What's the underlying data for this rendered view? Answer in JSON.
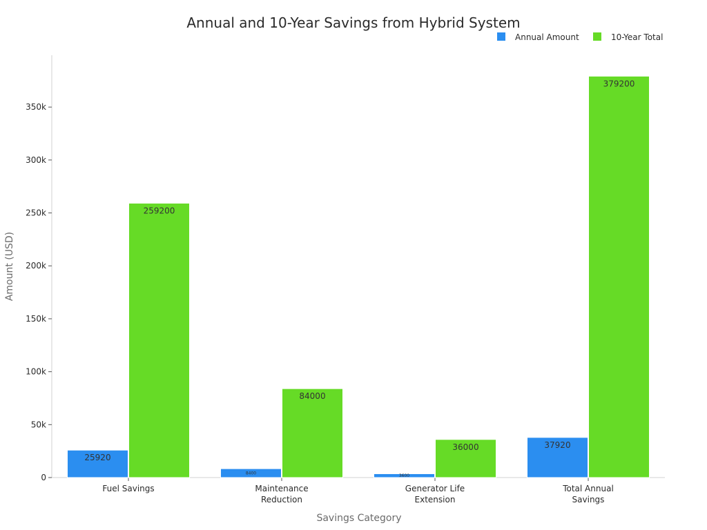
{
  "chart_data": {
    "type": "bar",
    "title": "Annual and 10-Year Savings from Hybrid System",
    "xlabel": "Savings Category",
    "ylabel": "Amount (USD)",
    "categories": [
      [
        "Fuel Savings"
      ],
      [
        "Maintenance",
        "Reduction"
      ],
      [
        "Generator Life",
        "Extension"
      ],
      [
        "Total Annual",
        "Savings"
      ]
    ],
    "series": [
      {
        "name": "Annual Amount",
        "color": "#2b8ef0",
        "values": [
          25920,
          8400,
          3600,
          37920
        ]
      },
      {
        "name": "10-Year Total",
        "color": "#66db26",
        "values": [
          259200,
          84000,
          36000,
          379200
        ]
      }
    ],
    "value_labels": [
      [
        "25920",
        "8400",
        "3600",
        "37920"
      ],
      [
        "259200",
        "84000",
        "36000",
        "379200"
      ]
    ],
    "yticks": [
      0,
      50000,
      100000,
      150000,
      200000,
      250000,
      300000,
      350000
    ],
    "ytick_labels": [
      "0",
      "50k",
      "100k",
      "150k",
      "200k",
      "250k",
      "300k",
      "350k"
    ],
    "ylim": [
      0,
      399000
    ],
    "grid": false,
    "legend": "top-right"
  }
}
